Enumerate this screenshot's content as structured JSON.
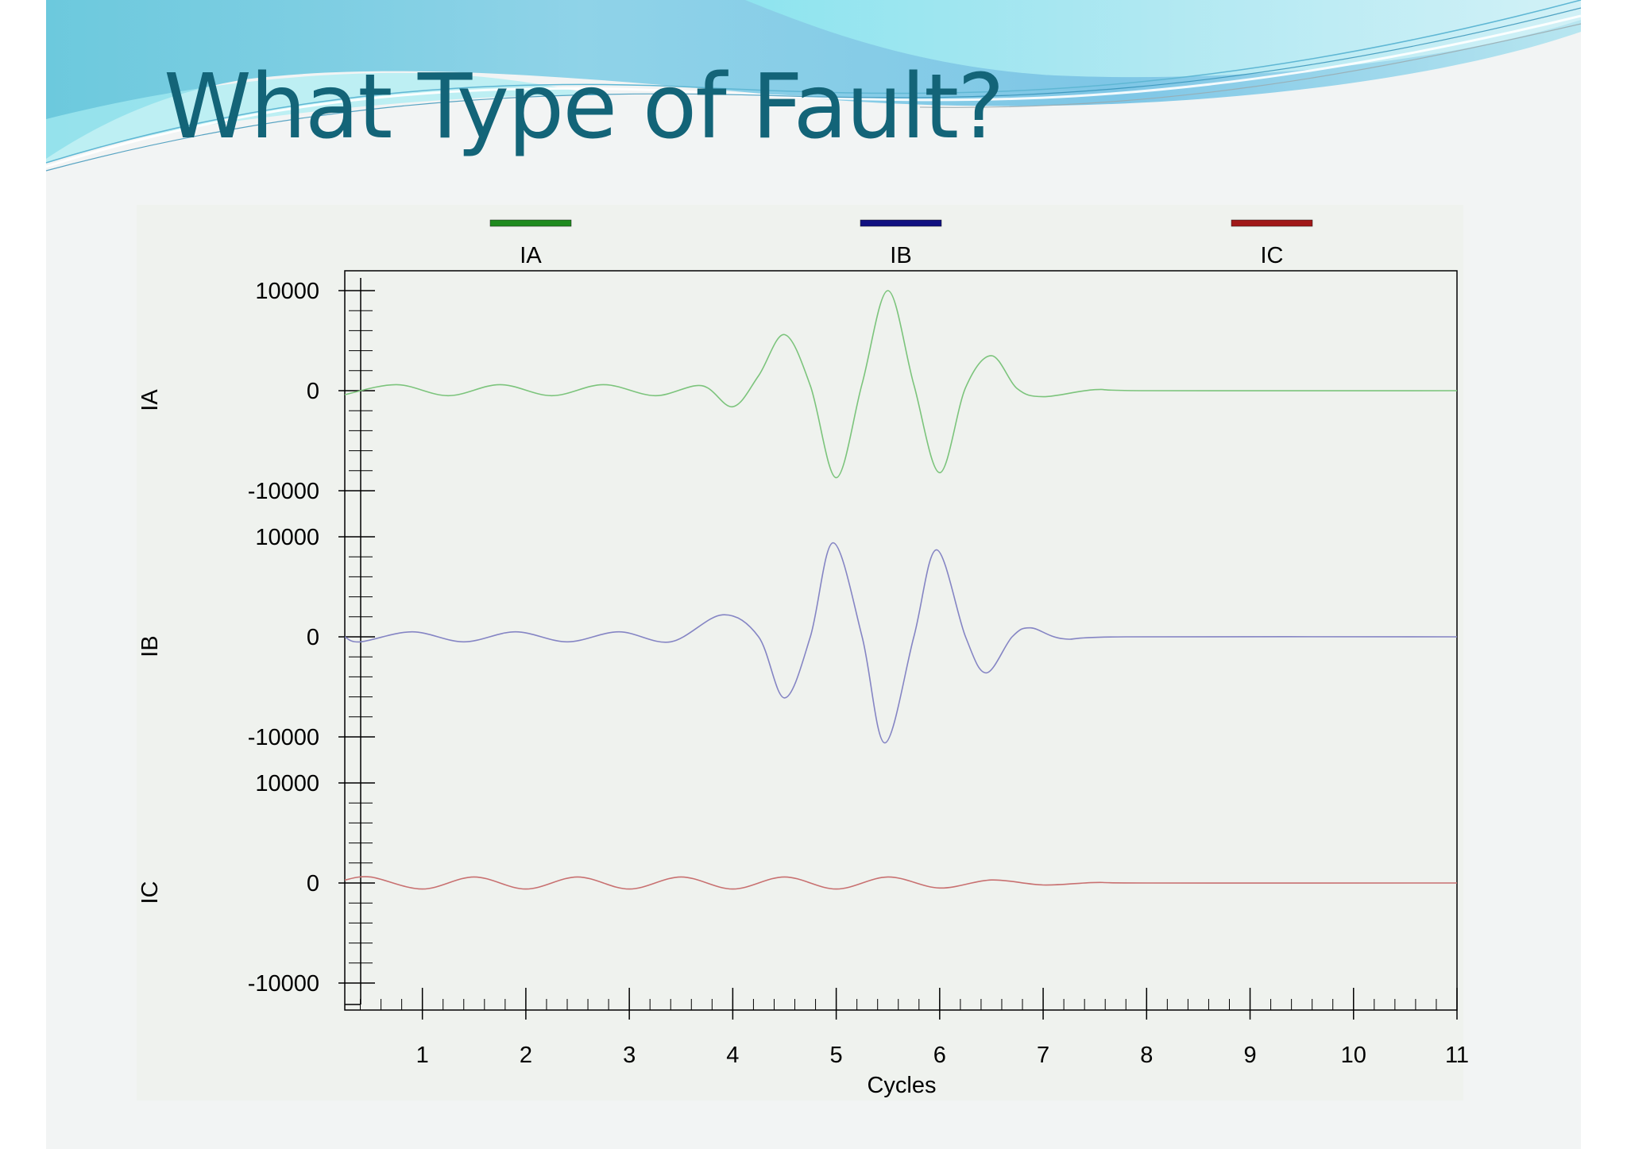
{
  "slide": {
    "title": "What Type of Fault?"
  },
  "colors": {
    "title": "#136478",
    "ia": "#1e8a1e",
    "ib": "#101080",
    "ic": "#a01818",
    "ia_trace": "#7cc47c",
    "ib_trace": "#8585c4",
    "ic_trace": "#c87070"
  },
  "chart_data": {
    "type": "line",
    "xlabel": "Cycles",
    "xlim": [
      0.25,
      11
    ],
    "x_ticks": [
      1,
      2,
      3,
      4,
      5,
      6,
      7,
      8,
      9,
      10,
      11
    ],
    "x_tick_labels": [
      "1",
      "2",
      "3",
      "4",
      "5",
      "6",
      "7",
      "8",
      "9",
      "10",
      "11"
    ],
    "legend": {
      "position": "top",
      "entries": [
        "IA",
        "IB",
        "IC"
      ]
    },
    "grid": false,
    "panels": [
      {
        "ylabel": "IA",
        "ylim": [
          -10000,
          10000
        ],
        "y_tick_labels": [
          "10000",
          "0",
          "-10000"
        ],
        "x": [
          0.25,
          0.75,
          1.25,
          1.75,
          2.25,
          2.75,
          3.25,
          3.7,
          4.0,
          4.25,
          4.5,
          4.75,
          5.0,
          5.25,
          5.5,
          5.75,
          6.0,
          6.25,
          6.5,
          6.75,
          7.0,
          7.5,
          8.0,
          11.0
        ],
        "values": [
          -400,
          600,
          -500,
          600,
          -500,
          600,
          -500,
          500,
          -1600,
          1500,
          5600,
          500,
          -8700,
          700,
          10000,
          600,
          -8200,
          300,
          3500,
          200,
          -600,
          100,
          0,
          0
        ]
      },
      {
        "ylabel": "IB",
        "ylim": [
          -10000,
          10000
        ],
        "y_tick_labels": [
          "10000",
          "0",
          "-10000"
        ],
        "x": [
          0.25,
          0.4,
          0.9,
          1.4,
          1.9,
          2.4,
          2.9,
          3.4,
          3.9,
          4.25,
          4.5,
          4.75,
          4.97,
          5.25,
          5.47,
          5.75,
          5.97,
          6.25,
          6.45,
          6.7,
          6.88,
          7.2,
          7.8,
          11.0
        ],
        "values": [
          0,
          -500,
          500,
          -500,
          500,
          -500,
          500,
          -500,
          2200,
          0,
          -6100,
          0,
          9400,
          0,
          -10600,
          0,
          8700,
          0,
          -3600,
          0,
          900,
          -200,
          0,
          0
        ]
      },
      {
        "ylabel": "IC",
        "ylim": [
          -10000,
          10000
        ],
        "y_tick_labels": [
          "10000",
          "0",
          "-10000"
        ],
        "x": [
          0.25,
          0.5,
          1.0,
          1.5,
          2.0,
          2.5,
          3.0,
          3.5,
          4.0,
          4.5,
          5.0,
          5.5,
          6.0,
          6.5,
          7.0,
          7.5,
          8.0,
          11.0
        ],
        "values": [
          300,
          600,
          -600,
          600,
          -600,
          600,
          -600,
          600,
          -600,
          600,
          -600,
          600,
          -500,
          300,
          -200,
          50,
          0,
          0
        ]
      }
    ]
  }
}
